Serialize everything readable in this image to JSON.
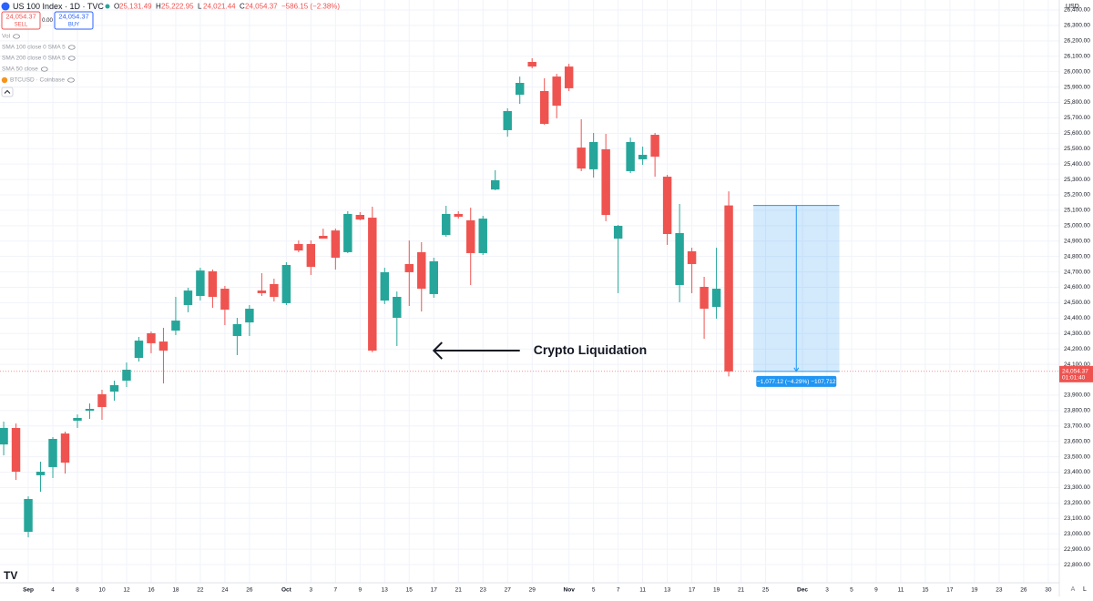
{
  "chart_data": {
    "type": "candlestick",
    "symbol": "US 100 Index · 1D · TVC",
    "ohlc": [
      {
        "key": "O",
        "value": "25,131.49"
      },
      {
        "key": "H",
        "value": "25,222.95"
      },
      {
        "key": "L",
        "value": "24,021.44"
      },
      {
        "key": "C",
        "value": "24,054.37"
      }
    ],
    "change": "−586.15 (−2.38%)",
    "sell": {
      "price": "24,054.37",
      "label": "SELL"
    },
    "spread": "0.00",
    "buy": {
      "price": "24,054.37",
      "label": "BUY"
    },
    "indicators": [
      "Vol",
      "SMA 100 close 0 SMA 5",
      "SMA 200 close 0 SMA 5",
      "SMA 50 close",
      "BTCUSD · Coinbase"
    ],
    "currency": "USD",
    "up_color": "#26a69a",
    "down_color": "#ef5350",
    "grid": true,
    "candles": [
      {
        "open": 23580,
        "high": 23728,
        "low": 23509,
        "close": 23687
      },
      {
        "open": 23687,
        "high": 23716,
        "low": 23350,
        "close": 23403
      },
      {
        "open": 23013,
        "high": 23243,
        "low": 22977,
        "close": 23226
      },
      {
        "open": 23380,
        "high": 23468,
        "low": 23273,
        "close": 23403
      },
      {
        "open": 23433,
        "high": 23628,
        "low": 23362,
        "close": 23616
      },
      {
        "open": 23651,
        "high": 23663,
        "low": 23391,
        "close": 23462
      },
      {
        "open": 23734,
        "high": 23775,
        "low": 23687,
        "close": 23752
      },
      {
        "open": 23799,
        "high": 23846,
        "low": 23746,
        "close": 23811
      },
      {
        "open": 23906,
        "high": 23935,
        "low": 23740,
        "close": 23823
      },
      {
        "open": 23923,
        "high": 23994,
        "low": 23864,
        "close": 23965
      },
      {
        "open": 23994,
        "high": 24112,
        "low": 23953,
        "close": 24065
      },
      {
        "open": 24142,
        "high": 24278,
        "low": 24118,
        "close": 24254
      },
      {
        "open": 24302,
        "high": 24313,
        "low": 24172,
        "close": 24237
      },
      {
        "open": 24248,
        "high": 24337,
        "low": 23976,
        "close": 24189
      },
      {
        "open": 24319,
        "high": 24538,
        "low": 24290,
        "close": 24384
      },
      {
        "open": 24485,
        "high": 24597,
        "low": 24438,
        "close": 24579
      },
      {
        "open": 24544,
        "high": 24727,
        "low": 24514,
        "close": 24709
      },
      {
        "open": 24704,
        "high": 24715,
        "low": 24467,
        "close": 24538
      },
      {
        "open": 24591,
        "high": 24609,
        "low": 24355,
        "close": 24455
      },
      {
        "open": 24284,
        "high": 24402,
        "low": 24160,
        "close": 24361
      },
      {
        "open": 24372,
        "high": 24485,
        "low": 24284,
        "close": 24461
      },
      {
        "open": 24579,
        "high": 24692,
        "low": 24544,
        "close": 24562
      },
      {
        "open": 24621,
        "high": 24656,
        "low": 24508,
        "close": 24538
      },
      {
        "open": 24497,
        "high": 24763,
        "low": 24485,
        "close": 24745
      },
      {
        "open": 24881,
        "high": 24904,
        "low": 24828,
        "close": 24839
      },
      {
        "open": 24881,
        "high": 24904,
        "low": 24680,
        "close": 24733
      },
      {
        "open": 24934,
        "high": 24981,
        "low": 24916,
        "close": 24916
      },
      {
        "open": 24969,
        "high": 24981,
        "low": 24715,
        "close": 24792
      },
      {
        "open": 24828,
        "high": 25094,
        "low": 24822,
        "close": 25076
      },
      {
        "open": 25070,
        "high": 25088,
        "low": 25035,
        "close": 25040
      },
      {
        "open": 25052,
        "high": 25123,
        "low": 24178,
        "close": 24189
      },
      {
        "open": 24514,
        "high": 24727,
        "low": 24491,
        "close": 24698
      },
      {
        "open": 24402,
        "high": 24573,
        "low": 24219,
        "close": 24538
      },
      {
        "open": 24751,
        "high": 24904,
        "low": 24479,
        "close": 24698
      },
      {
        "open": 24828,
        "high": 24893,
        "low": 24443,
        "close": 24591
      },
      {
        "open": 24556,
        "high": 24792,
        "low": 24532,
        "close": 24769
      },
      {
        "open": 24940,
        "high": 25129,
        "low": 24928,
        "close": 25076
      },
      {
        "open": 25076,
        "high": 25094,
        "low": 25046,
        "close": 25058
      },
      {
        "open": 25035,
        "high": 25117,
        "low": 24615,
        "close": 24822
      },
      {
        "open": 24822,
        "high": 25064,
        "low": 24810,
        "close": 25046
      },
      {
        "open": 25235,
        "high": 25360,
        "low": 25230,
        "close": 25295
      },
      {
        "open": 25620,
        "high": 25762,
        "low": 25578,
        "close": 25744
      },
      {
        "open": 25850,
        "high": 25968,
        "low": 25791,
        "close": 25927
      },
      {
        "open": 26063,
        "high": 26087,
        "low": 26022,
        "close": 26033
      },
      {
        "open": 25874,
        "high": 25957,
        "low": 25655,
        "close": 25661
      },
      {
        "open": 25968,
        "high": 25986,
        "low": 25697,
        "close": 25779
      },
      {
        "open": 26033,
        "high": 26051,
        "low": 25874,
        "close": 25892
      },
      {
        "open": 25507,
        "high": 25691,
        "low": 25354,
        "close": 25371
      },
      {
        "open": 25366,
        "high": 25602,
        "low": 25312,
        "close": 25543
      },
      {
        "open": 25496,
        "high": 25596,
        "low": 25029,
        "close": 25070
      },
      {
        "open": 24916,
        "high": 25005,
        "low": 24562,
        "close": 24999
      },
      {
        "open": 25354,
        "high": 25572,
        "low": 25342,
        "close": 25543
      },
      {
        "open": 25431,
        "high": 25513,
        "low": 25395,
        "close": 25460
      },
      {
        "open": 25590,
        "high": 25602,
        "low": 25318,
        "close": 25448
      },
      {
        "open": 25318,
        "high": 25330,
        "low": 24875,
        "close": 24946
      },
      {
        "open": 24615,
        "high": 25141,
        "low": 24503,
        "close": 24952
      },
      {
        "open": 24834,
        "high": 24857,
        "low": 24562,
        "close": 24751
      },
      {
        "open": 24603,
        "high": 24668,
        "low": 24266,
        "close": 24461
      },
      {
        "open": 24473,
        "high": 24857,
        "low": 24396,
        "close": 24591
      },
      {
        "open": 25131.49,
        "high": 25222.95,
        "low": 24021.44,
        "close": 24054.37
      }
    ],
    "xlim": [
      -0.3,
      85.9
    ],
    "xticks": [
      {
        "value": 2,
        "label": "Sep"
      },
      {
        "value": 4,
        "label": "4"
      },
      {
        "value": 6,
        "label": "8"
      },
      {
        "value": 8,
        "label": "10"
      },
      {
        "value": 10,
        "label": "12"
      },
      {
        "value": 12,
        "label": "16"
      },
      {
        "value": 14,
        "label": "18"
      },
      {
        "value": 16,
        "label": "22"
      },
      {
        "value": 18,
        "label": "24"
      },
      {
        "value": 20,
        "label": "26"
      },
      {
        "value": 23,
        "label": "Oct"
      },
      {
        "value": 25,
        "label": "3"
      },
      {
        "value": 27,
        "label": "7"
      },
      {
        "value": 29,
        "label": "9"
      },
      {
        "value": 31,
        "label": "13"
      },
      {
        "value": 33,
        "label": "15"
      },
      {
        "value": 35,
        "label": "17"
      },
      {
        "value": 37,
        "label": "21"
      },
      {
        "value": 39,
        "label": "23"
      },
      {
        "value": 41,
        "label": "27"
      },
      {
        "value": 43,
        "label": "29"
      },
      {
        "value": 46,
        "label": "Nov"
      },
      {
        "value": 48,
        "label": "5"
      },
      {
        "value": 50,
        "label": "7"
      },
      {
        "value": 52,
        "label": "11"
      },
      {
        "value": 54,
        "label": "13"
      },
      {
        "value": 56,
        "label": "17"
      },
      {
        "value": 58,
        "label": "19"
      },
      {
        "value": 60,
        "label": "21"
      },
      {
        "value": 62,
        "label": "25"
      },
      {
        "value": 65,
        "label": "Dec"
      },
      {
        "value": 67,
        "label": "3"
      },
      {
        "value": 69,
        "label": "5"
      },
      {
        "value": 71,
        "label": "9"
      },
      {
        "value": 73,
        "label": "11"
      },
      {
        "value": 75,
        "label": "15"
      },
      {
        "value": 77,
        "label": "17"
      },
      {
        "value": 79,
        "label": "19"
      },
      {
        "value": 81,
        "label": "23"
      },
      {
        "value": 83,
        "label": "26"
      },
      {
        "value": 85,
        "label": "30"
      }
    ],
    "ylim": [
      22682,
      26465
    ],
    "yticks": [
      {
        "value": 26400,
        "label": "26,400.00"
      },
      {
        "value": 26300,
        "label": "26,300.00"
      },
      {
        "value": 26200,
        "label": "26,200.00"
      },
      {
        "value": 26100,
        "label": "26,100.00"
      },
      {
        "value": 26000,
        "label": "26,000.00"
      },
      {
        "value": 25900,
        "label": "25,900.00"
      },
      {
        "value": 25800,
        "label": "25,800.00"
      },
      {
        "value": 25700,
        "label": "25,700.00"
      },
      {
        "value": 25600,
        "label": "25,600.00"
      },
      {
        "value": 25500,
        "label": "25,500.00"
      },
      {
        "value": 25400,
        "label": "25,400.00"
      },
      {
        "value": 25300,
        "label": "25,300.00"
      },
      {
        "value": 25200,
        "label": "25,200.00"
      },
      {
        "value": 25100,
        "label": "25,100.00"
      },
      {
        "value": 25000,
        "label": "25,000.00"
      },
      {
        "value": 24900,
        "label": "24,900.00"
      },
      {
        "value": 24800,
        "label": "24,800.00"
      },
      {
        "value": 24700,
        "label": "24,700.00"
      },
      {
        "value": 24600,
        "label": "24,600.00"
      },
      {
        "value": 24500,
        "label": "24,500.00"
      },
      {
        "value": 24400,
        "label": "24,400.00"
      },
      {
        "value": 24300,
        "label": "24,300.00"
      },
      {
        "value": 24200,
        "label": "24,200.00"
      },
      {
        "value": 24100,
        "label": "24,100.00"
      },
      {
        "value": 23900,
        "label": "23,900.00"
      },
      {
        "value": 23800,
        "label": "23,800.00"
      },
      {
        "value": 23700,
        "label": "23,700.00"
      },
      {
        "value": 23600,
        "label": "23,600.00"
      },
      {
        "value": 23500,
        "label": "23,500.00"
      },
      {
        "value": 23400,
        "label": "23,400.00"
      },
      {
        "value": 23300,
        "label": "23,300.00"
      },
      {
        "value": 23200,
        "label": "23,200.00"
      },
      {
        "value": 23100,
        "label": "23,100.00"
      },
      {
        "value": 23000,
        "label": "23,000.00"
      },
      {
        "value": 22900,
        "label": "22,900.00"
      },
      {
        "value": 22800,
        "label": "22,800.00"
      }
    ],
    "last_price": {
      "value": 24054.37,
      "label": "24,054.37",
      "countdown": "01:01:40"
    },
    "annotation": {
      "text": "Crypto Liquidation",
      "price": 24189,
      "from_x": 35,
      "to_x": 42
    },
    "measure": {
      "from_x": 61,
      "to_x": 68,
      "from_price": 25131.49,
      "to_price": 24054.37,
      "label": "−1,077.12 (−4.29%) −107,712"
    },
    "corner_labels": [
      "A",
      "L"
    ]
  }
}
